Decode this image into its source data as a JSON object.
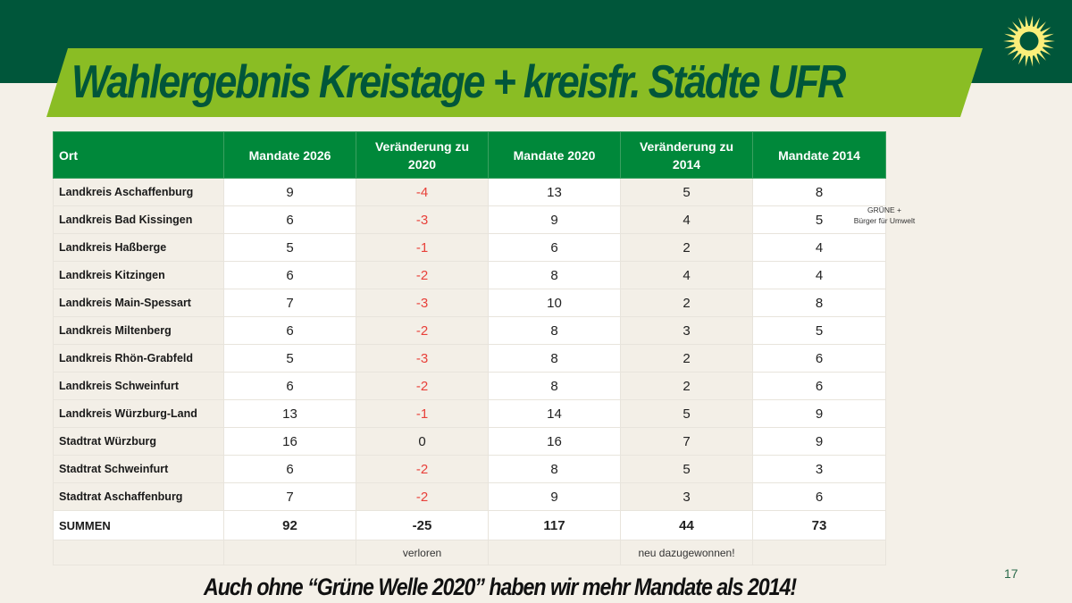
{
  "header": {
    "title": "Wahlergebnis Kreistage + kreisfr. Städte UFR",
    "logo_icon": "sunflower-logo-icon",
    "colors": {
      "band": "#00563a",
      "banner": "#8abd24",
      "table_header": "#00883a",
      "negative": "#e8403a",
      "logo": "#fbee7a"
    }
  },
  "table": {
    "columns": [
      "Ort",
      "Mandate 2026",
      "Veränderung zu 2020",
      "Mandate 2020",
      "Veränderung zu 2014",
      "Mandate 2014"
    ],
    "rows": [
      {
        "ort": "Landkreis Aschaffenburg",
        "m2026": "9",
        "v2020": "-4",
        "m2020": "13",
        "v2014": "5",
        "m2014": "8"
      },
      {
        "ort": "Landkreis Bad Kissingen",
        "m2026": "6",
        "v2020": "-3",
        "m2020": "9",
        "v2014": "4",
        "m2014": "5"
      },
      {
        "ort": "Landkreis Haßberge",
        "m2026": "5",
        "v2020": "-1",
        "m2020": "6",
        "v2014": "2",
        "m2014": "4"
      },
      {
        "ort": "Landkreis Kitzingen",
        "m2026": "6",
        "v2020": "-2",
        "m2020": "8",
        "v2014": "4",
        "m2014": "4"
      },
      {
        "ort": "Landkreis Main-Spessart",
        "m2026": "7",
        "v2020": "-3",
        "m2020": "10",
        "v2014": "2",
        "m2014": "8"
      },
      {
        "ort": "Landkreis Miltenberg",
        "m2026": "6",
        "v2020": "-2",
        "m2020": "8",
        "v2014": "3",
        "m2014": "5"
      },
      {
        "ort": "Landkreis Rhön-Grabfeld",
        "m2026": "5",
        "v2020": "-3",
        "m2020": "8",
        "v2014": "2",
        "m2014": "6"
      },
      {
        "ort": "Landkreis Schweinfurt",
        "m2026": "6",
        "v2020": "-2",
        "m2020": "8",
        "v2014": "2",
        "m2014": "6"
      },
      {
        "ort": "Landkreis Würzburg-Land",
        "m2026": "13",
        "v2020": "-1",
        "m2020": "14",
        "v2014": "5",
        "m2014": "9"
      },
      {
        "ort": "Stadtrat Würzburg",
        "m2026": "16",
        "v2020": "0",
        "m2020": "16",
        "v2014": "7",
        "m2014": "9"
      },
      {
        "ort": "Stadtrat Schweinfurt",
        "m2026": "6",
        "v2020": "-2",
        "m2020": "8",
        "v2014": "5",
        "m2014": "3"
      },
      {
        "ort": "Stadtrat Aschaffenburg",
        "m2026": "7",
        "v2020": "-2",
        "m2020": "9",
        "v2014": "3",
        "m2014": "6"
      }
    ],
    "sum": {
      "ort": "SUMMEN",
      "m2026": "92",
      "v2020": "-25",
      "m2020": "117",
      "v2014": "44",
      "m2014": "73"
    },
    "notes": {
      "v2020": "verloren",
      "v2014": "neu dazugewonnen!"
    },
    "side_note": {
      "line1": "GRÜNE +",
      "line2": "Bürger für Umwelt"
    }
  },
  "footer": {
    "text": "Auch ohne “Grüne Welle 2020” haben wir mehr Mandate als 2014!",
    "page_number": "17"
  }
}
